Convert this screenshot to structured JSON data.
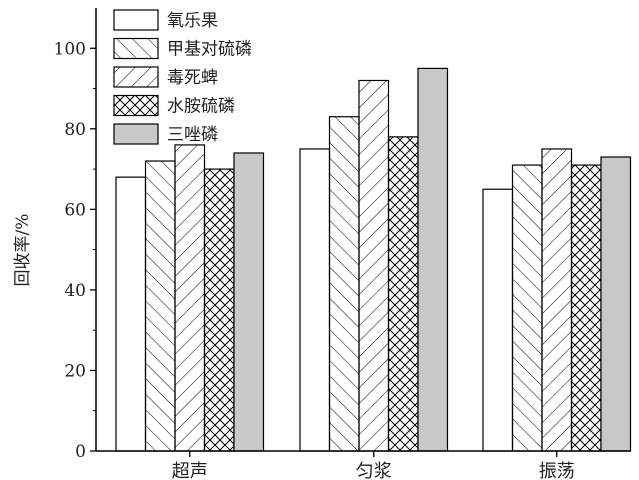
{
  "chart_data": {
    "type": "bar",
    "title": "",
    "xlabel": "",
    "ylabel": "回收率/%",
    "ylim": [
      0,
      110
    ],
    "yticks": [
      0,
      20,
      40,
      60,
      80,
      100
    ],
    "categories": [
      "超声",
      "匀浆",
      "振荡"
    ],
    "legend_position": "top-left",
    "grid": false,
    "series": [
      {
        "name": "氧乐果",
        "pattern": "none",
        "values": [
          68,
          75,
          65
        ]
      },
      {
        "name": "甲基对硫磷",
        "pattern": "hatch-forward",
        "values": [
          72,
          83,
          71
        ]
      },
      {
        "name": "毒死蜱",
        "pattern": "hatch-backward",
        "values": [
          76,
          92,
          75
        ]
      },
      {
        "name": "水胺硫磷",
        "pattern": "crosshatch",
        "values": [
          70,
          78,
          71
        ]
      },
      {
        "name": "三唑磷",
        "pattern": "solid-gray",
        "values": [
          74,
          95,
          73
        ]
      }
    ]
  },
  "colors": {
    "bar_stroke": "#000000",
    "solid_fill": "#c8c8c8",
    "axis": "#000000"
  }
}
